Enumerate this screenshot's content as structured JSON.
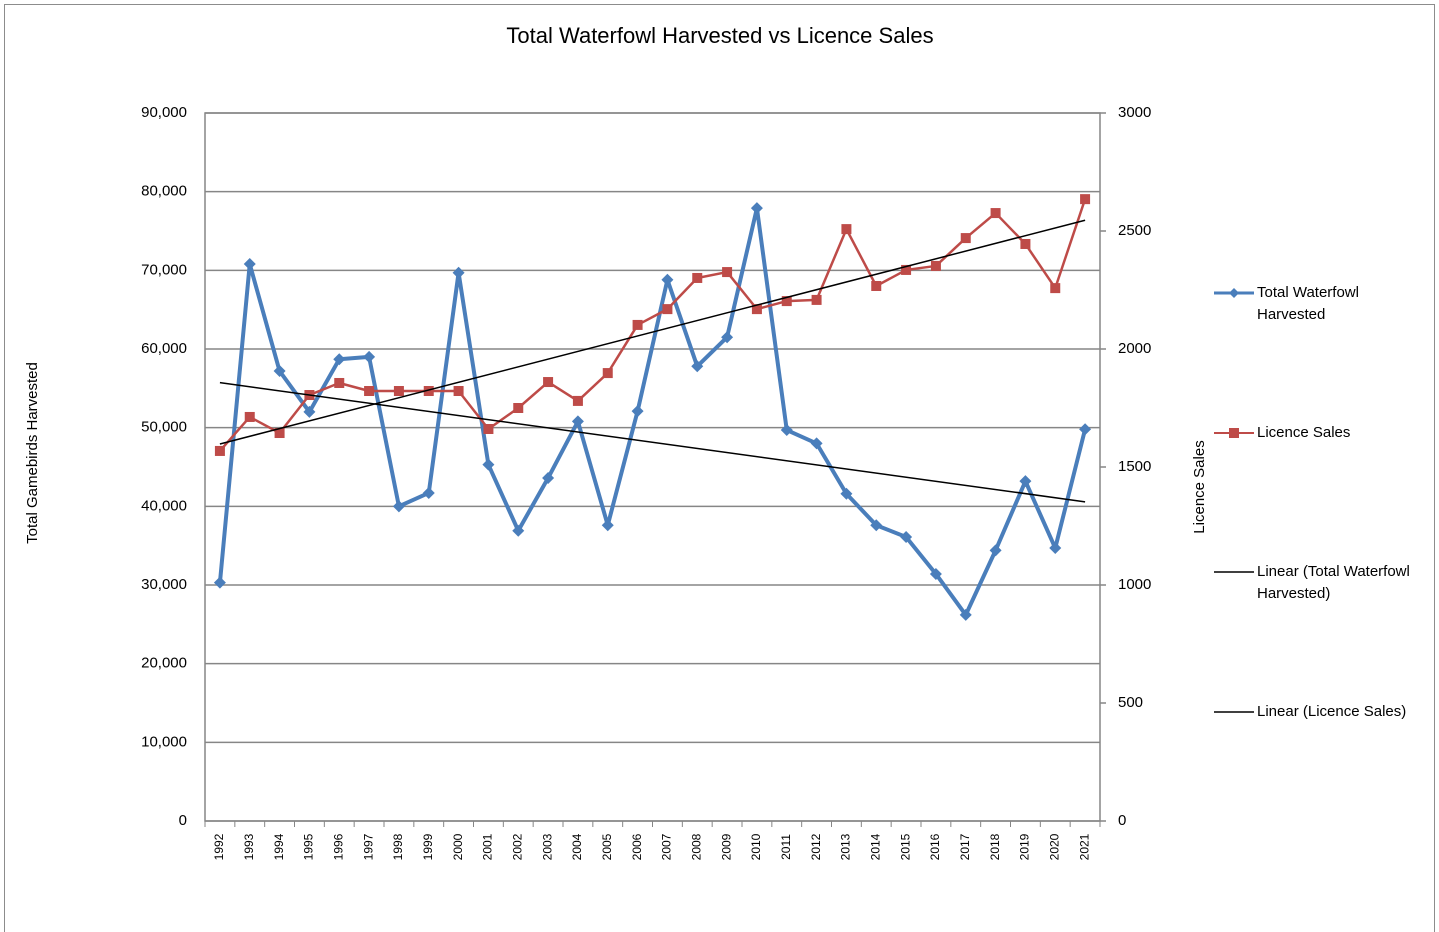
{
  "chart_data": {
    "type": "line",
    "title": "Total Waterfowl Harvested vs Licence Sales",
    "y_label": "Total Gamebirds Harvested",
    "y2_label": "Licence Sales",
    "categories": [
      "1992",
      "1993",
      "1994",
      "1995",
      "1996",
      "1997",
      "1998",
      "1999",
      "2000",
      "2001",
      "2002",
      "2003",
      "2004",
      "2005",
      "2006",
      "2007",
      "2008",
      "2009",
      "2010",
      "2011",
      "2012",
      "2013",
      "2014",
      "2015",
      "2016",
      "2017",
      "2018",
      "2019",
      "2020",
      "2021"
    ],
    "ylim": [
      0,
      90000
    ],
    "yticks": [
      0,
      {
        "value": 10000,
        "label": "10,000"
      },
      {
        "value": 20000,
        "label": "20,000"
      },
      {
        "value": 30000,
        "label": "30,000"
      },
      {
        "value": 40000,
        "label": "40,000"
      },
      {
        "value": 50000,
        "label": "50,000"
      },
      {
        "value": 60000,
        "label": "60,000"
      },
      {
        "value": 70000,
        "label": "70,000"
      },
      {
        "value": 80000,
        "label": "80,000"
      },
      {
        "value": 90000,
        "label": "90,000"
      }
    ],
    "y2lim": [
      0,
      3000
    ],
    "y2ticks": [
      0,
      500,
      1000,
      1500,
      2000,
      2500,
      3000
    ],
    "grid": true,
    "legend": "right",
    "series": [
      {
        "name": "Total Waterfowl Harvested",
        "color": "#4a7ebb",
        "marker": "diamond",
        "values": [
          30300,
          70800,
          57200,
          52000,
          58700,
          59000,
          40000,
          41700,
          69700,
          45300,
          36900,
          43600,
          50800,
          37600,
          52100,
          68800,
          57800,
          61500,
          77900,
          49700,
          48000,
          41600,
          37600,
          36100,
          31400,
          26200,
          34400,
          43200,
          34700,
          49800
        ],
        "trendline": {
          "name": "Linear (Total Waterfowl Harvested)",
          "color": "#000000"
        }
      },
      {
        "name": "Licence Sales",
        "color": "#be4b48",
        "marker": "square",
        "axis": "y2",
        "values": [
          1568,
          1712,
          1644,
          1805,
          1856,
          1822,
          1822,
          1822,
          1822,
          1661,
          1750,
          1860,
          1780,
          1898,
          2102,
          2169,
          2301,
          2326,
          2169,
          2203,
          2208,
          2508,
          2267,
          2335,
          2352,
          2470,
          2576,
          2445,
          2258,
          2635
        ],
        "trendline": {
          "name": "Linear (Licence Sales)",
          "color": "#000000"
        }
      }
    ]
  }
}
